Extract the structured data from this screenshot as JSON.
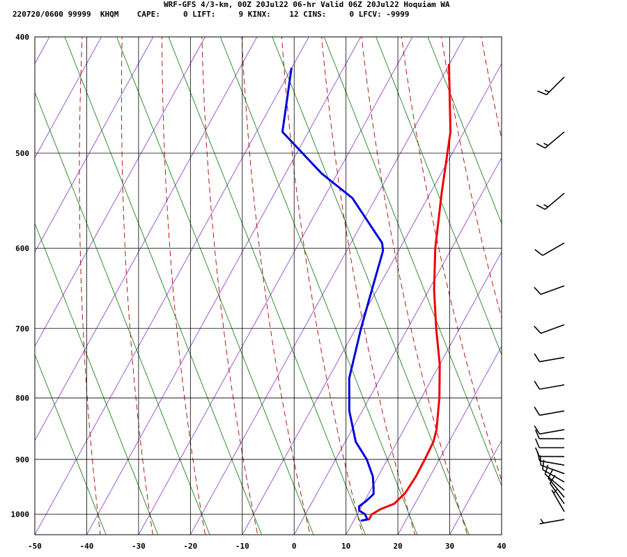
{
  "header": {
    "title": "WRF-GFS 4/3-km, 00Z 20Jul22 06-hr Valid 06Z 20Jul22 Hoquiam WA",
    "info": "220720/0600 99999  KHQM    CAPE:     0 LIFT:     9 KINX:    12 CINS:     0 LFCV: -9999"
  },
  "colors": {
    "temperature": "#ee0000",
    "dewpoint": "#0000dd",
    "dry_adiabat": "#aa0000",
    "moist_adiabat": "#007700",
    "isotherm": "#8833cc",
    "grid": "#000000",
    "wind_barb": "#000000"
  },
  "chart_data": {
    "type": "skew-t",
    "x_ticks": [
      -50,
      -40,
      -30,
      -20,
      -10,
      0,
      10,
      20,
      30,
      40
    ],
    "y_ticks": [
      400,
      500,
      600,
      700,
      800,
      900,
      1000
    ],
    "xlim": [
      -50,
      40
    ],
    "ylim": [
      1040,
      400
    ],
    "y_scale": "log-pressure",
    "grid": true,
    "series": [
      {
        "points": [
          {
            "p": 422,
            "t": -20.0
          },
          {
            "p": 480,
            "t": -12.6
          },
          {
            "p": 540,
            "t": -7.8
          },
          {
            "p": 600,
            "t": -3.2
          },
          {
            "p": 650,
            "t": 1.0
          },
          {
            "p": 700,
            "t": 5.5
          },
          {
            "p": 750,
            "t": 10.0
          },
          {
            "p": 800,
            "t": 13.5
          },
          {
            "p": 850,
            "t": 16.3
          },
          {
            "p": 870,
            "t": 17.0
          },
          {
            "p": 900,
            "t": 17.2
          },
          {
            "p": 930,
            "t": 17.3
          },
          {
            "p": 960,
            "t": 17.0
          },
          {
            "p": 980,
            "t": 16.0
          },
          {
            "p": 990,
            "t": 14.0
          },
          {
            "p": 1000,
            "t": 12.8
          },
          {
            "p": 1010,
            "t": 12.8
          }
        ]
      },
      {
        "points": [
          {
            "p": 425,
            "t": -50.0
          },
          {
            "p": 480,
            "t": -45.0
          },
          {
            "p": 520,
            "t": -33.0
          },
          {
            "p": 545,
            "t": -24.5
          },
          {
            "p": 594,
            "t": -14.0
          },
          {
            "p": 603,
            "t": -13.0
          },
          {
            "p": 650,
            "t": -11.0
          },
          {
            "p": 700,
            "t": -9.0
          },
          {
            "p": 770,
            "t": -6.0
          },
          {
            "p": 820,
            "t": -2.5
          },
          {
            "p": 870,
            "t": 2.0
          },
          {
            "p": 900,
            "t": 6.0
          },
          {
            "p": 930,
            "t": 9.0
          },
          {
            "p": 950,
            "t": 10.3
          },
          {
            "p": 962,
            "t": 11.0
          },
          {
            "p": 975,
            "t": 10.3
          },
          {
            "p": 985,
            "t": 9.5
          },
          {
            "p": 993,
            "t": 10.0
          },
          {
            "p": 1000,
            "t": 11.5
          },
          {
            "p": 1010,
            "t": 12.5
          },
          {
            "p": 1012,
            "t": 11.5
          }
        ]
      }
    ],
    "wind_barbs": [
      {
        "p": 432,
        "direction_deg": 225,
        "speed_kt": 15
      },
      {
        "p": 480,
        "direction_deg": 230,
        "speed_kt": 15
      },
      {
        "p": 540,
        "direction_deg": 230,
        "speed_kt": 15
      },
      {
        "p": 594,
        "direction_deg": 240,
        "speed_kt": 10
      },
      {
        "p": 645,
        "direction_deg": 250,
        "speed_kt": 10
      },
      {
        "p": 695,
        "direction_deg": 250,
        "speed_kt": 10
      },
      {
        "p": 740,
        "direction_deg": 260,
        "speed_kt": 10
      },
      {
        "p": 780,
        "direction_deg": 260,
        "speed_kt": 10
      },
      {
        "p": 820,
        "direction_deg": 260,
        "speed_kt": 10
      },
      {
        "p": 850,
        "direction_deg": 260,
        "speed_kt": 10
      },
      {
        "p": 865,
        "direction_deg": 270,
        "speed_kt": 10
      },
      {
        "p": 880,
        "direction_deg": 270,
        "speed_kt": 10
      },
      {
        "p": 895,
        "direction_deg": 270,
        "speed_kt": 10
      },
      {
        "p": 910,
        "direction_deg": 280,
        "speed_kt": 10
      },
      {
        "p": 925,
        "direction_deg": 290,
        "speed_kt": 10
      },
      {
        "p": 940,
        "direction_deg": 300,
        "speed_kt": 10
      },
      {
        "p": 955,
        "direction_deg": 310,
        "speed_kt": 10
      },
      {
        "p": 968,
        "direction_deg": 320,
        "speed_kt": 10
      },
      {
        "p": 980,
        "direction_deg": 325,
        "speed_kt": 10
      },
      {
        "p": 995,
        "direction_deg": 330,
        "speed_kt": 5
      },
      {
        "p": 1010,
        "direction_deg": 260,
        "speed_kt": 5
      }
    ]
  }
}
